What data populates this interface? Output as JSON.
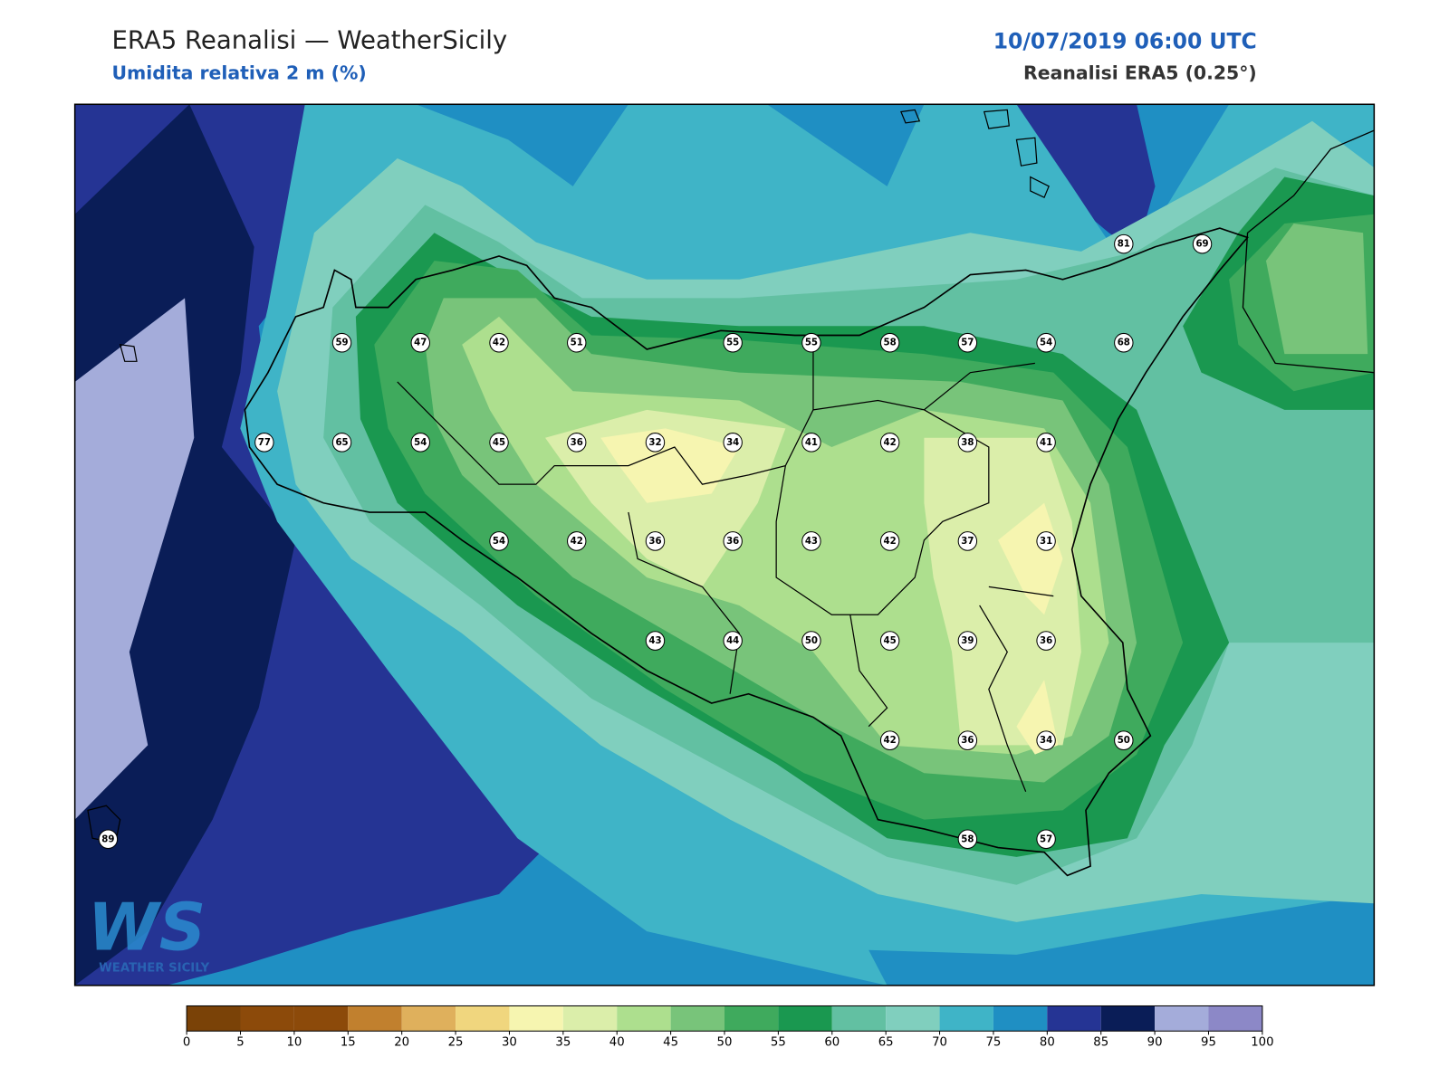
{
  "header": {
    "title": "ERA5 Reanalisi — WeatherSicily",
    "subtitle": "Umidita relativa 2 m (%)",
    "datetime": "10/07/2019 06:00 UTC",
    "source": "Reanalisi ERA5 (0.25°)"
  },
  "stations": [
    59,
    47,
    42,
    51,
    55,
    55,
    58,
    57,
    54,
    68,
    77,
    65,
    54,
    45,
    36,
    32,
    34,
    41,
    42,
    38,
    41,
    54,
    42,
    36,
    36,
    43,
    42,
    37,
    31,
    43,
    44,
    50,
    45,
    39,
    36,
    42,
    36,
    34,
    50,
    89,
    58,
    57,
    81,
    69
  ],
  "colorbar": {
    "ticks": [
      0,
      5,
      10,
      15,
      20,
      25,
      30,
      35,
      40,
      45,
      50,
      55,
      60,
      65,
      70,
      75,
      80,
      85,
      90,
      95,
      100
    ],
    "colors": [
      "#7a4207",
      "#8c4a0a",
      "#8c4a0a",
      "#c1802e",
      "#dfb05c",
      "#f0d67e",
      "#f6f5b0",
      "#dbeeaa",
      "#addf8e",
      "#78c47a",
      "#3faa5d",
      "#1a9850",
      "#62c0a2",
      "#80cfbe",
      "#3fb4c7",
      "#1f8fc3",
      "#253494",
      "#0a1d57",
      "#a4acda",
      "#8c88c7"
    ]
  },
  "logo": {
    "mark": "WS",
    "name": "WEATHER SICILY"
  }
}
